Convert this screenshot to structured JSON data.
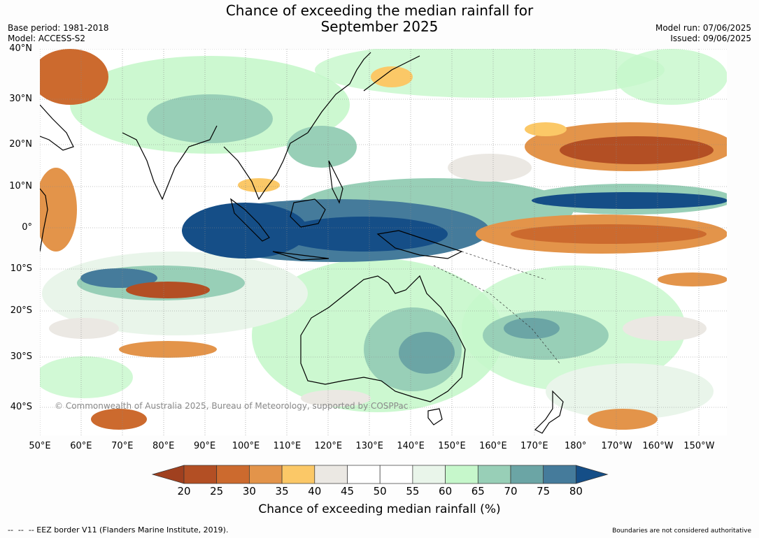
{
  "title": {
    "line1": "Chance of exceeding the median rainfall for",
    "line2": "September 2025"
  },
  "meta": {
    "base_period": "Base period: 1981-2018",
    "model": "Model: ACCESS-S2",
    "model_run": "Model run: 07/06/2025",
    "issued": "Issued: 09/06/2025"
  },
  "map": {
    "lat_labels": [
      "40°N",
      "30°N",
      "20°N",
      "10°N",
      "0°",
      "10°S",
      "20°S",
      "30°S",
      "40°S"
    ],
    "lon_labels": [
      "50°E",
      "60°E",
      "70°E",
      "80°E",
      "90°E",
      "100°E",
      "110°E",
      "120°E",
      "130°E",
      "140°E",
      "150°E",
      "160°E",
      "170°E",
      "180°",
      "170°W",
      "160°W",
      "150°W"
    ],
    "copyright": "© Commonwealth of Australia 2025, Bureau of Meteorology, supported by COSPPac"
  },
  "colorbar": {
    "levels": [
      "20",
      "25",
      "30",
      "35",
      "40",
      "45",
      "50",
      "55",
      "60",
      "65",
      "70",
      "75",
      "80"
    ],
    "colors": [
      "#a0401f",
      "#b34f24",
      "#cc6a2e",
      "#e3944a",
      "#fbc867",
      "#ebe8e3",
      "#ffffff",
      "#ffffff",
      "#e9f5ea",
      "#c6f7cb",
      "#98cfb7",
      "#6ba5a5",
      "#457b9b",
      "#154e87"
    ],
    "title": "Chance of exceeding median rainfall (%)"
  },
  "footer": {
    "legend": "--  --  -- EEZ border V11 (Flanders Marine Institute, 2019).",
    "disclaimer": "Boundaries are not considered authoritative"
  }
}
